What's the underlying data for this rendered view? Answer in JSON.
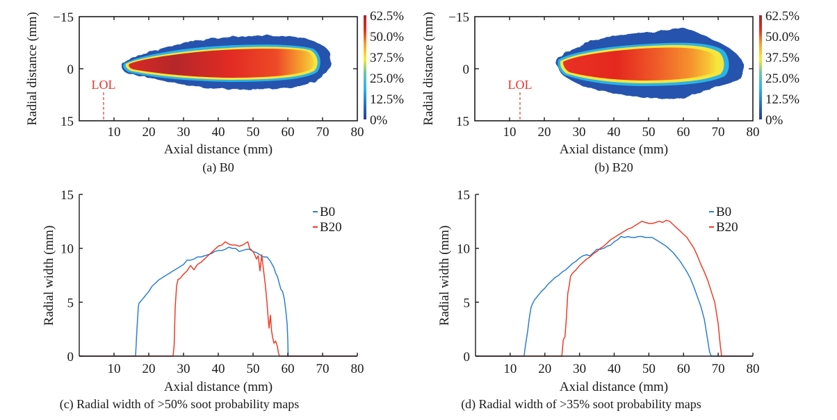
{
  "colorbar": {
    "labels": [
      "62.5%",
      "50.0%",
      "37.5%",
      "25.0%",
      "12.5%",
      "0%"
    ],
    "colors": [
      "#a3282b",
      "#e62a22",
      "#f7a12e",
      "#f6ee2e",
      "#6fc4a8",
      "#2eb5e8",
      "#2468b6",
      "#2a3a94"
    ]
  },
  "colors": {
    "b0": "#2a7fcf",
    "b20": "#ee3b26",
    "lol": "#e8332a",
    "axis": "#1a1a1a"
  },
  "chart_data": [
    {
      "id": "a",
      "type": "heatmap",
      "title": "(a) B0",
      "xlabel": "Axial distance (mm)",
      "ylabel": "Radial distance (mm)",
      "xlim": [
        0,
        80
      ],
      "ylim": [
        -15,
        15
      ],
      "xticks": [
        "10",
        "20",
        "30",
        "40",
        "50",
        "60",
        "70",
        "80"
      ],
      "yticks": [
        "−15",
        "0",
        "15"
      ],
      "colorbar_range_percent": [
        0,
        62.5
      ],
      "annotation": {
        "text": "LOL",
        "x": 7
      },
      "soot_region": {
        "x_start": 12.5,
        "x_end": 72,
        "max_half_width_top": 9.5,
        "max_half_width_bottom": 8.5
      },
      "core_region_35pct": {
        "x_start": 14.5,
        "x_end": 69,
        "half_width": 5.5
      },
      "peak_location_x": 28
    },
    {
      "id": "b",
      "type": "heatmap",
      "title": "(b) B20",
      "xlabel": "Axial distance (mm)",
      "ylabel": "Radial distance (mm)",
      "xlim": [
        0,
        80
      ],
      "ylim": [
        -15,
        15
      ],
      "xticks": [
        "10",
        "20",
        "30",
        "40",
        "50",
        "60",
        "70",
        "80"
      ],
      "yticks": [
        "−15",
        "0",
        "15"
      ],
      "colorbar_range_percent": [
        0,
        62.5
      ],
      "annotation": {
        "text": "LOL",
        "x": 13
      },
      "soot_region": {
        "x_start": 23,
        "x_end": 77,
        "max_half_width_top": 11.5,
        "max_half_width_bottom": 10
      },
      "core_region_35pct": {
        "x_start": 25,
        "x_end": 71,
        "half_width": 6.5
      },
      "peak_location_x": 40
    },
    {
      "id": "c",
      "type": "line",
      "title": "(c) Radial width of >50% soot probability maps",
      "xlabel": "Axial distance (mm)",
      "ylabel": "Radial width (mm)",
      "xlim": [
        0,
        80
      ],
      "ylim": [
        0,
        15
      ],
      "xticks": [
        "10",
        "20",
        "30",
        "40",
        "50",
        "60",
        "70",
        "80"
      ],
      "yticks": [
        "0",
        "5",
        "10",
        "15"
      ],
      "legend": "top-right",
      "series": [
        {
          "name": "B0",
          "x": [
            0,
            16.2,
            16.6,
            17.0,
            17.2,
            18,
            19,
            20,
            21,
            22,
            23,
            24,
            25,
            26,
            27,
            28,
            29,
            30,
            31,
            32,
            33,
            34,
            35,
            36,
            37,
            38,
            39,
            40,
            41,
            42,
            43,
            44,
            45,
            46,
            47,
            48,
            49,
            50,
            51,
            52,
            53,
            54,
            55,
            56,
            56.5,
            57,
            57.5,
            58,
            58.5,
            59,
            59.5,
            59.8,
            60,
            60.1,
            80
          ],
          "y": [
            0,
            0,
            2.5,
            4.6,
            4.9,
            5.2,
            5.6,
            6.0,
            6.5,
            6.8,
            7.1,
            7.3,
            7.5,
            7.7,
            7.9,
            8.1,
            8.3,
            8.5,
            8.9,
            8.9,
            9.0,
            9.2,
            9.2,
            9.3,
            9.4,
            9.5,
            9.7,
            9.8,
            9.8,
            9.9,
            10.1,
            10.0,
            10.0,
            9.7,
            9.8,
            9.9,
            9.9,
            9.7,
            9.6,
            9.4,
            9.2,
            9.2,
            8.8,
            8.2,
            7.7,
            7.4,
            6.8,
            6.2,
            6.0,
            5.3,
            4.0,
            3.0,
            1.5,
            0,
            0
          ]
        },
        {
          "name": "B20",
          "x": [
            0,
            27.0,
            27.3,
            27.6,
            28.0,
            28.4,
            29,
            30,
            31,
            32,
            33,
            34,
            35,
            36,
            37,
            38,
            39,
            40,
            41,
            42,
            43,
            44,
            45,
            46,
            47,
            48,
            48.5,
            49,
            50,
            50.5,
            51,
            51.5,
            52,
            52.5,
            53,
            53.5,
            54,
            54.3,
            54.6,
            55,
            55.3,
            55.6,
            56,
            56.5,
            57,
            57.3,
            57.6,
            80
          ],
          "y": [
            0,
            0,
            1.0,
            4.5,
            6.5,
            7.1,
            7.2,
            7.6,
            7.9,
            8.4,
            8.0,
            8.5,
            8.7,
            9.0,
            9.3,
            9.6,
            9.9,
            10.2,
            10.3,
            10.6,
            10.4,
            10.3,
            10.3,
            10.2,
            10.3,
            10.5,
            10.6,
            10.0,
            9.7,
            9.4,
            9.0,
            9.3,
            7.9,
            9.4,
            8.0,
            6.7,
            5.0,
            3.7,
            2.6,
            3.8,
            2.4,
            1.8,
            1.2,
            1.4,
            0.9,
            0.3,
            0,
            0
          ]
        }
      ]
    },
    {
      "id": "d",
      "type": "line",
      "title": "(d) Radial width of >35% soot probability maps",
      "xlabel": "Axial distance (mm)",
      "ylabel": "Radial width (mm)",
      "xlim": [
        0,
        80
      ],
      "ylim": [
        0,
        15
      ],
      "xticks": [
        "10",
        "20",
        "30",
        "40",
        "50",
        "60",
        "70",
        "80"
      ],
      "yticks": [
        "0",
        "5",
        "10",
        "15"
      ],
      "legend": "top-right",
      "series": [
        {
          "name": "B0",
          "x": [
            0,
            14.0,
            14.5,
            15.0,
            15.5,
            16.0,
            16.5,
            17,
            18,
            19,
            20,
            21,
            22,
            23,
            24,
            25,
            26,
            27,
            28,
            29,
            30,
            31,
            32,
            33,
            34,
            35,
            36,
            37,
            38,
            39,
            40,
            41,
            42,
            43,
            44,
            45,
            46,
            47,
            48,
            49,
            50,
            51,
            52,
            53,
            54,
            55,
            56,
            57,
            58,
            59,
            60,
            61,
            62,
            63,
            64,
            65,
            66,
            66.5,
            67,
            67.5,
            68,
            68.2,
            69,
            80
          ],
          "y": [
            0,
            0,
            1.2,
            2.2,
            3.5,
            4.5,
            4.9,
            5.2,
            5.6,
            6.0,
            6.3,
            6.7,
            7.0,
            7.3,
            7.5,
            7.8,
            8.0,
            8.3,
            8.6,
            8.8,
            9.1,
            9.3,
            9.4,
            9.3,
            9.6,
            9.9,
            9.9,
            10.0,
            10.2,
            10.3,
            10.6,
            10.8,
            11.1,
            11.0,
            11.1,
            11.0,
            11.0,
            11.1,
            11.1,
            11.0,
            11.0,
            11.0,
            10.8,
            10.6,
            10.4,
            10.2,
            9.9,
            9.6,
            9.2,
            8.8,
            8.3,
            7.8,
            7.2,
            6.4,
            5.5,
            4.6,
            3.4,
            2.4,
            1.4,
            0.4,
            0,
            0,
            0,
            0
          ]
        },
        {
          "name": "B20",
          "x": [
            0,
            24.9,
            25.3,
            25.8,
            26.2,
            26.6,
            27.0,
            27.4,
            28,
            29,
            30,
            31,
            32,
            33,
            34,
            35,
            36,
            37,
            38,
            39,
            40,
            41,
            42,
            43,
            44,
            45,
            46,
            47,
            48,
            49,
            50,
            51,
            52,
            53,
            54,
            55,
            56,
            57,
            58,
            59,
            60,
            61,
            62,
            63,
            64,
            65,
            66,
            67,
            68,
            69,
            69.5,
            70,
            70.3,
            70.6,
            71,
            80
          ],
          "y": [
            0,
            0,
            1.5,
            1.8,
            3.5,
            5.8,
            6.5,
            7.4,
            7.7,
            8.0,
            8.4,
            8.7,
            9.0,
            9.2,
            9.5,
            9.7,
            10.0,
            10.2,
            10.5,
            10.8,
            11.0,
            11.2,
            11.4,
            11.6,
            11.8,
            11.9,
            12.1,
            12.3,
            12.5,
            12.4,
            12.3,
            12.3,
            12.4,
            12.5,
            12.4,
            12.6,
            12.5,
            12.2,
            11.9,
            11.6,
            11.3,
            11.0,
            10.5,
            10.0,
            9.3,
            8.5,
            7.8,
            7.0,
            6.0,
            5.0,
            4.0,
            3.0,
            2.0,
            1.0,
            0,
            0
          ]
        }
      ]
    }
  ]
}
